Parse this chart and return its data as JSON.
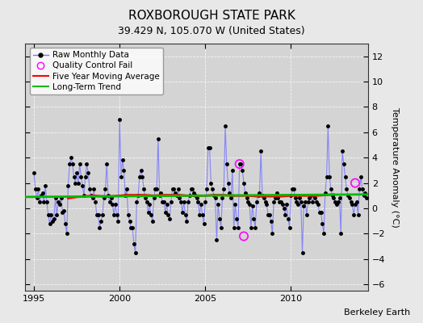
{
  "title": "ROXBOROUGH STATE PARK",
  "subtitle": "39.429 N, 105.070 W (United States)",
  "ylabel": "Temperature Anomaly (°C)",
  "credit": "Berkeley Earth",
  "xlim": [
    1994.5,
    2014.5
  ],
  "ylim": [
    -6.5,
    13.0
  ],
  "yticks": [
    -6,
    -4,
    -2,
    0,
    2,
    4,
    6,
    8,
    10,
    12
  ],
  "xticks": [
    1995,
    2000,
    2005,
    2010
  ],
  "bg_color": "#e8e8e8",
  "plot_bg_color": "#d4d4d4",
  "raw_line_color": "#7777ff",
  "raw_marker_color": "#000000",
  "moving_avg_color": "#ff0000",
  "trend_color": "#00bb00",
  "qc_fail_color": "#ff00ff",
  "legend_labels": [
    "Raw Monthly Data",
    "Quality Control Fail",
    "Five Year Moving Average",
    "Long-Term Trend"
  ],
  "raw_data": [
    [
      1995.0,
      2.8
    ],
    [
      1995.083,
      1.5
    ],
    [
      1995.167,
      0.8
    ],
    [
      1995.25,
      1.5
    ],
    [
      1995.333,
      0.5
    ],
    [
      1995.417,
      1.0
    ],
    [
      1995.5,
      1.2
    ],
    [
      1995.583,
      0.5
    ],
    [
      1995.667,
      1.8
    ],
    [
      1995.75,
      0.5
    ],
    [
      1995.833,
      -0.5
    ],
    [
      1995.917,
      -1.2
    ],
    [
      1996.0,
      -0.5
    ],
    [
      1996.083,
      -1.0
    ],
    [
      1996.167,
      -0.8
    ],
    [
      1996.25,
      0.8
    ],
    [
      1996.333,
      -0.5
    ],
    [
      1996.417,
      0.5
    ],
    [
      1996.5,
      0.3
    ],
    [
      1996.583,
      0.8
    ],
    [
      1996.667,
      -0.3
    ],
    [
      1996.75,
      -0.2
    ],
    [
      1996.833,
      -1.2
    ],
    [
      1996.917,
      -2.0
    ],
    [
      1997.0,
      1.8
    ],
    [
      1997.083,
      3.5
    ],
    [
      1997.167,
      4.0
    ],
    [
      1997.25,
      3.5
    ],
    [
      1997.333,
      2.5
    ],
    [
      1997.417,
      2.0
    ],
    [
      1997.5,
      2.8
    ],
    [
      1997.583,
      2.0
    ],
    [
      1997.667,
      3.5
    ],
    [
      1997.75,
      2.5
    ],
    [
      1997.833,
      1.8
    ],
    [
      1997.917,
      1.0
    ],
    [
      1998.0,
      2.5
    ],
    [
      1998.083,
      3.5
    ],
    [
      1998.167,
      2.8
    ],
    [
      1998.25,
      1.5
    ],
    [
      1998.333,
      1.0
    ],
    [
      1998.417,
      0.8
    ],
    [
      1998.5,
      1.5
    ],
    [
      1998.583,
      0.5
    ],
    [
      1998.667,
      -0.5
    ],
    [
      1998.75,
      -0.5
    ],
    [
      1998.833,
      -1.5
    ],
    [
      1998.917,
      -1.0
    ],
    [
      1999.0,
      -0.5
    ],
    [
      1999.083,
      0.8
    ],
    [
      1999.167,
      1.5
    ],
    [
      1999.25,
      3.5
    ],
    [
      1999.333,
      1.0
    ],
    [
      1999.417,
      0.5
    ],
    [
      1999.5,
      0.8
    ],
    [
      1999.583,
      0.3
    ],
    [
      1999.667,
      -0.5
    ],
    [
      1999.75,
      0.3
    ],
    [
      1999.833,
      -0.5
    ],
    [
      1999.917,
      -1.0
    ],
    [
      2000.0,
      7.0
    ],
    [
      2000.083,
      2.5
    ],
    [
      2000.167,
      3.8
    ],
    [
      2000.25,
      3.0
    ],
    [
      2000.333,
      1.0
    ],
    [
      2000.417,
      1.5
    ],
    [
      2000.5,
      -0.5
    ],
    [
      2000.583,
      -1.0
    ],
    [
      2000.667,
      -1.5
    ],
    [
      2000.75,
      -1.5
    ],
    [
      2000.833,
      -2.8
    ],
    [
      2000.917,
      -3.5
    ],
    [
      2001.0,
      0.5
    ],
    [
      2001.083,
      1.0
    ],
    [
      2001.167,
      2.5
    ],
    [
      2001.25,
      3.0
    ],
    [
      2001.333,
      2.5
    ],
    [
      2001.417,
      1.5
    ],
    [
      2001.5,
      0.8
    ],
    [
      2001.583,
      0.5
    ],
    [
      2001.667,
      -0.3
    ],
    [
      2001.75,
      0.3
    ],
    [
      2001.833,
      -0.5
    ],
    [
      2001.917,
      -1.0
    ],
    [
      2002.0,
      0.8
    ],
    [
      2002.083,
      1.5
    ],
    [
      2002.167,
      1.5
    ],
    [
      2002.25,
      5.5
    ],
    [
      2002.333,
      1.0
    ],
    [
      2002.417,
      1.2
    ],
    [
      2002.5,
      0.5
    ],
    [
      2002.583,
      0.5
    ],
    [
      2002.667,
      -0.3
    ],
    [
      2002.75,
      0.3
    ],
    [
      2002.833,
      -0.5
    ],
    [
      2002.917,
      -0.8
    ],
    [
      2003.0,
      0.5
    ],
    [
      2003.083,
      1.5
    ],
    [
      2003.167,
      1.5
    ],
    [
      2003.25,
      1.2
    ],
    [
      2003.333,
      1.0
    ],
    [
      2003.417,
      1.5
    ],
    [
      2003.5,
      0.8
    ],
    [
      2003.583,
      0.5
    ],
    [
      2003.667,
      -0.3
    ],
    [
      2003.75,
      0.5
    ],
    [
      2003.833,
      -0.5
    ],
    [
      2003.917,
      -1.0
    ],
    [
      2004.0,
      0.5
    ],
    [
      2004.083,
      1.0
    ],
    [
      2004.167,
      1.5
    ],
    [
      2004.25,
      1.5
    ],
    [
      2004.333,
      1.2
    ],
    [
      2004.417,
      1.0
    ],
    [
      2004.5,
      0.8
    ],
    [
      2004.583,
      0.5
    ],
    [
      2004.667,
      -0.5
    ],
    [
      2004.75,
      0.3
    ],
    [
      2004.833,
      -0.5
    ],
    [
      2004.917,
      -1.2
    ],
    [
      2005.0,
      0.5
    ],
    [
      2005.083,
      1.5
    ],
    [
      2005.167,
      4.8
    ],
    [
      2005.25,
      4.8
    ],
    [
      2005.333,
      2.0
    ],
    [
      2005.417,
      1.5
    ],
    [
      2005.5,
      1.0
    ],
    [
      2005.583,
      0.8
    ],
    [
      2005.667,
      -2.5
    ],
    [
      2005.75,
      0.3
    ],
    [
      2005.833,
      -0.8
    ],
    [
      2005.917,
      -1.5
    ],
    [
      2006.0,
      0.8
    ],
    [
      2006.083,
      1.5
    ],
    [
      2006.167,
      6.5
    ],
    [
      2006.25,
      3.5
    ],
    [
      2006.333,
      2.0
    ],
    [
      2006.417,
      1.2
    ],
    [
      2006.5,
      0.8
    ],
    [
      2006.583,
      3.0
    ],
    [
      2006.667,
      -1.5
    ],
    [
      2006.75,
      0.3
    ],
    [
      2006.833,
      -0.8
    ],
    [
      2006.917,
      -1.5
    ],
    [
      2007.0,
      3.5
    ],
    [
      2007.083,
      3.5
    ],
    [
      2007.167,
      3.0
    ],
    [
      2007.25,
      2.0
    ],
    [
      2007.333,
      1.2
    ],
    [
      2007.417,
      0.8
    ],
    [
      2007.5,
      0.5
    ],
    [
      2007.583,
      0.3
    ],
    [
      2007.667,
      -1.5
    ],
    [
      2007.75,
      0.2
    ],
    [
      2007.833,
      -0.8
    ],
    [
      2007.917,
      -1.5
    ],
    [
      2008.0,
      0.5
    ],
    [
      2008.083,
      1.0
    ],
    [
      2008.167,
      1.2
    ],
    [
      2008.25,
      4.5
    ],
    [
      2008.333,
      1.0
    ],
    [
      2008.417,
      0.8
    ],
    [
      2008.5,
      0.5
    ],
    [
      2008.583,
      0.3
    ],
    [
      2008.667,
      -0.5
    ],
    [
      2008.75,
      -0.5
    ],
    [
      2008.833,
      -1.0
    ],
    [
      2008.917,
      -2.0
    ],
    [
      2009.0,
      0.5
    ],
    [
      2009.083,
      0.8
    ],
    [
      2009.167,
      1.2
    ],
    [
      2009.25,
      0.8
    ],
    [
      2009.333,
      0.5
    ],
    [
      2009.417,
      0.5
    ],
    [
      2009.5,
      0.3
    ],
    [
      2009.583,
      0.0
    ],
    [
      2009.667,
      -0.5
    ],
    [
      2009.75,
      0.3
    ],
    [
      2009.833,
      -0.8
    ],
    [
      2009.917,
      -1.5
    ],
    [
      2010.0,
      1.0
    ],
    [
      2010.083,
      1.5
    ],
    [
      2010.167,
      1.5
    ],
    [
      2010.25,
      0.8
    ],
    [
      2010.333,
      0.5
    ],
    [
      2010.417,
      0.3
    ],
    [
      2010.5,
      0.8
    ],
    [
      2010.583,
      0.5
    ],
    [
      2010.667,
      -3.5
    ],
    [
      2010.75,
      0.2
    ],
    [
      2010.833,
      0.5
    ],
    [
      2010.917,
      -0.5
    ],
    [
      2011.0,
      0.5
    ],
    [
      2011.083,
      0.8
    ],
    [
      2011.167,
      1.0
    ],
    [
      2011.25,
      0.5
    ],
    [
      2011.333,
      1.0
    ],
    [
      2011.417,
      0.8
    ],
    [
      2011.5,
      0.5
    ],
    [
      2011.583,
      0.3
    ],
    [
      2011.667,
      -0.3
    ],
    [
      2011.75,
      -0.3
    ],
    [
      2011.833,
      -1.2
    ],
    [
      2011.917,
      -2.0
    ],
    [
      2012.0,
      1.2
    ],
    [
      2012.083,
      2.5
    ],
    [
      2012.167,
      6.5
    ],
    [
      2012.25,
      2.5
    ],
    [
      2012.333,
      1.5
    ],
    [
      2012.417,
      1.0
    ],
    [
      2012.5,
      0.8
    ],
    [
      2012.583,
      0.5
    ],
    [
      2012.667,
      0.3
    ],
    [
      2012.75,
      0.5
    ],
    [
      2012.833,
      0.8
    ],
    [
      2012.917,
      -2.0
    ],
    [
      2013.0,
      4.5
    ],
    [
      2013.083,
      3.5
    ],
    [
      2013.167,
      2.5
    ],
    [
      2013.25,
      1.5
    ],
    [
      2013.333,
      1.0
    ],
    [
      2013.417,
      0.8
    ],
    [
      2013.5,
      0.5
    ],
    [
      2013.583,
      0.3
    ],
    [
      2013.667,
      -0.5
    ],
    [
      2013.75,
      0.3
    ],
    [
      2013.833,
      0.5
    ],
    [
      2013.917,
      -0.5
    ],
    [
      2014.0,
      1.5
    ],
    [
      2014.083,
      2.5
    ],
    [
      2014.167,
      1.5
    ],
    [
      2014.25,
      1.0
    ],
    [
      2014.333,
      1.2
    ],
    [
      2014.417,
      0.8
    ]
  ],
  "qc_fail_points": [
    [
      2007.0,
      3.5
    ],
    [
      2007.25,
      -2.2
    ],
    [
      2013.75,
      2.0
    ]
  ],
  "moving_avg": [
    [
      1997.0,
      0.8
    ],
    [
      1997.5,
      0.9
    ],
    [
      1998.0,
      0.95
    ],
    [
      1998.5,
      1.0
    ],
    [
      1999.0,
      0.95
    ],
    [
      1999.5,
      0.95
    ],
    [
      2000.0,
      1.0
    ],
    [
      2000.5,
      1.05
    ],
    [
      2001.0,
      1.05
    ],
    [
      2001.5,
      1.05
    ],
    [
      2002.0,
      1.0
    ],
    [
      2002.5,
      1.05
    ],
    [
      2003.0,
      1.05
    ],
    [
      2003.5,
      1.05
    ],
    [
      2004.0,
      1.0
    ],
    [
      2004.5,
      1.0
    ],
    [
      2005.0,
      1.0
    ],
    [
      2005.5,
      1.05
    ],
    [
      2006.0,
      1.05
    ],
    [
      2006.5,
      1.0
    ],
    [
      2007.0,
      1.0
    ],
    [
      2007.5,
      1.0
    ],
    [
      2008.0,
      0.95
    ],
    [
      2008.5,
      0.95
    ],
    [
      2009.0,
      0.95
    ],
    [
      2009.5,
      0.95
    ],
    [
      2010.0,
      1.0
    ],
    [
      2010.5,
      1.0
    ],
    [
      2011.0,
      1.0
    ],
    [
      2011.5,
      1.0
    ],
    [
      2012.0,
      1.05
    ],
    [
      2012.5,
      1.1
    ]
  ],
  "trend_x": [
    1994.5,
    2014.5
  ],
  "trend_y": [
    0.9,
    1.1
  ],
  "title_fontsize": 11,
  "subtitle_fontsize": 9,
  "axis_fontsize": 8,
  "legend_fontsize": 7.5,
  "credit_fontsize": 8
}
